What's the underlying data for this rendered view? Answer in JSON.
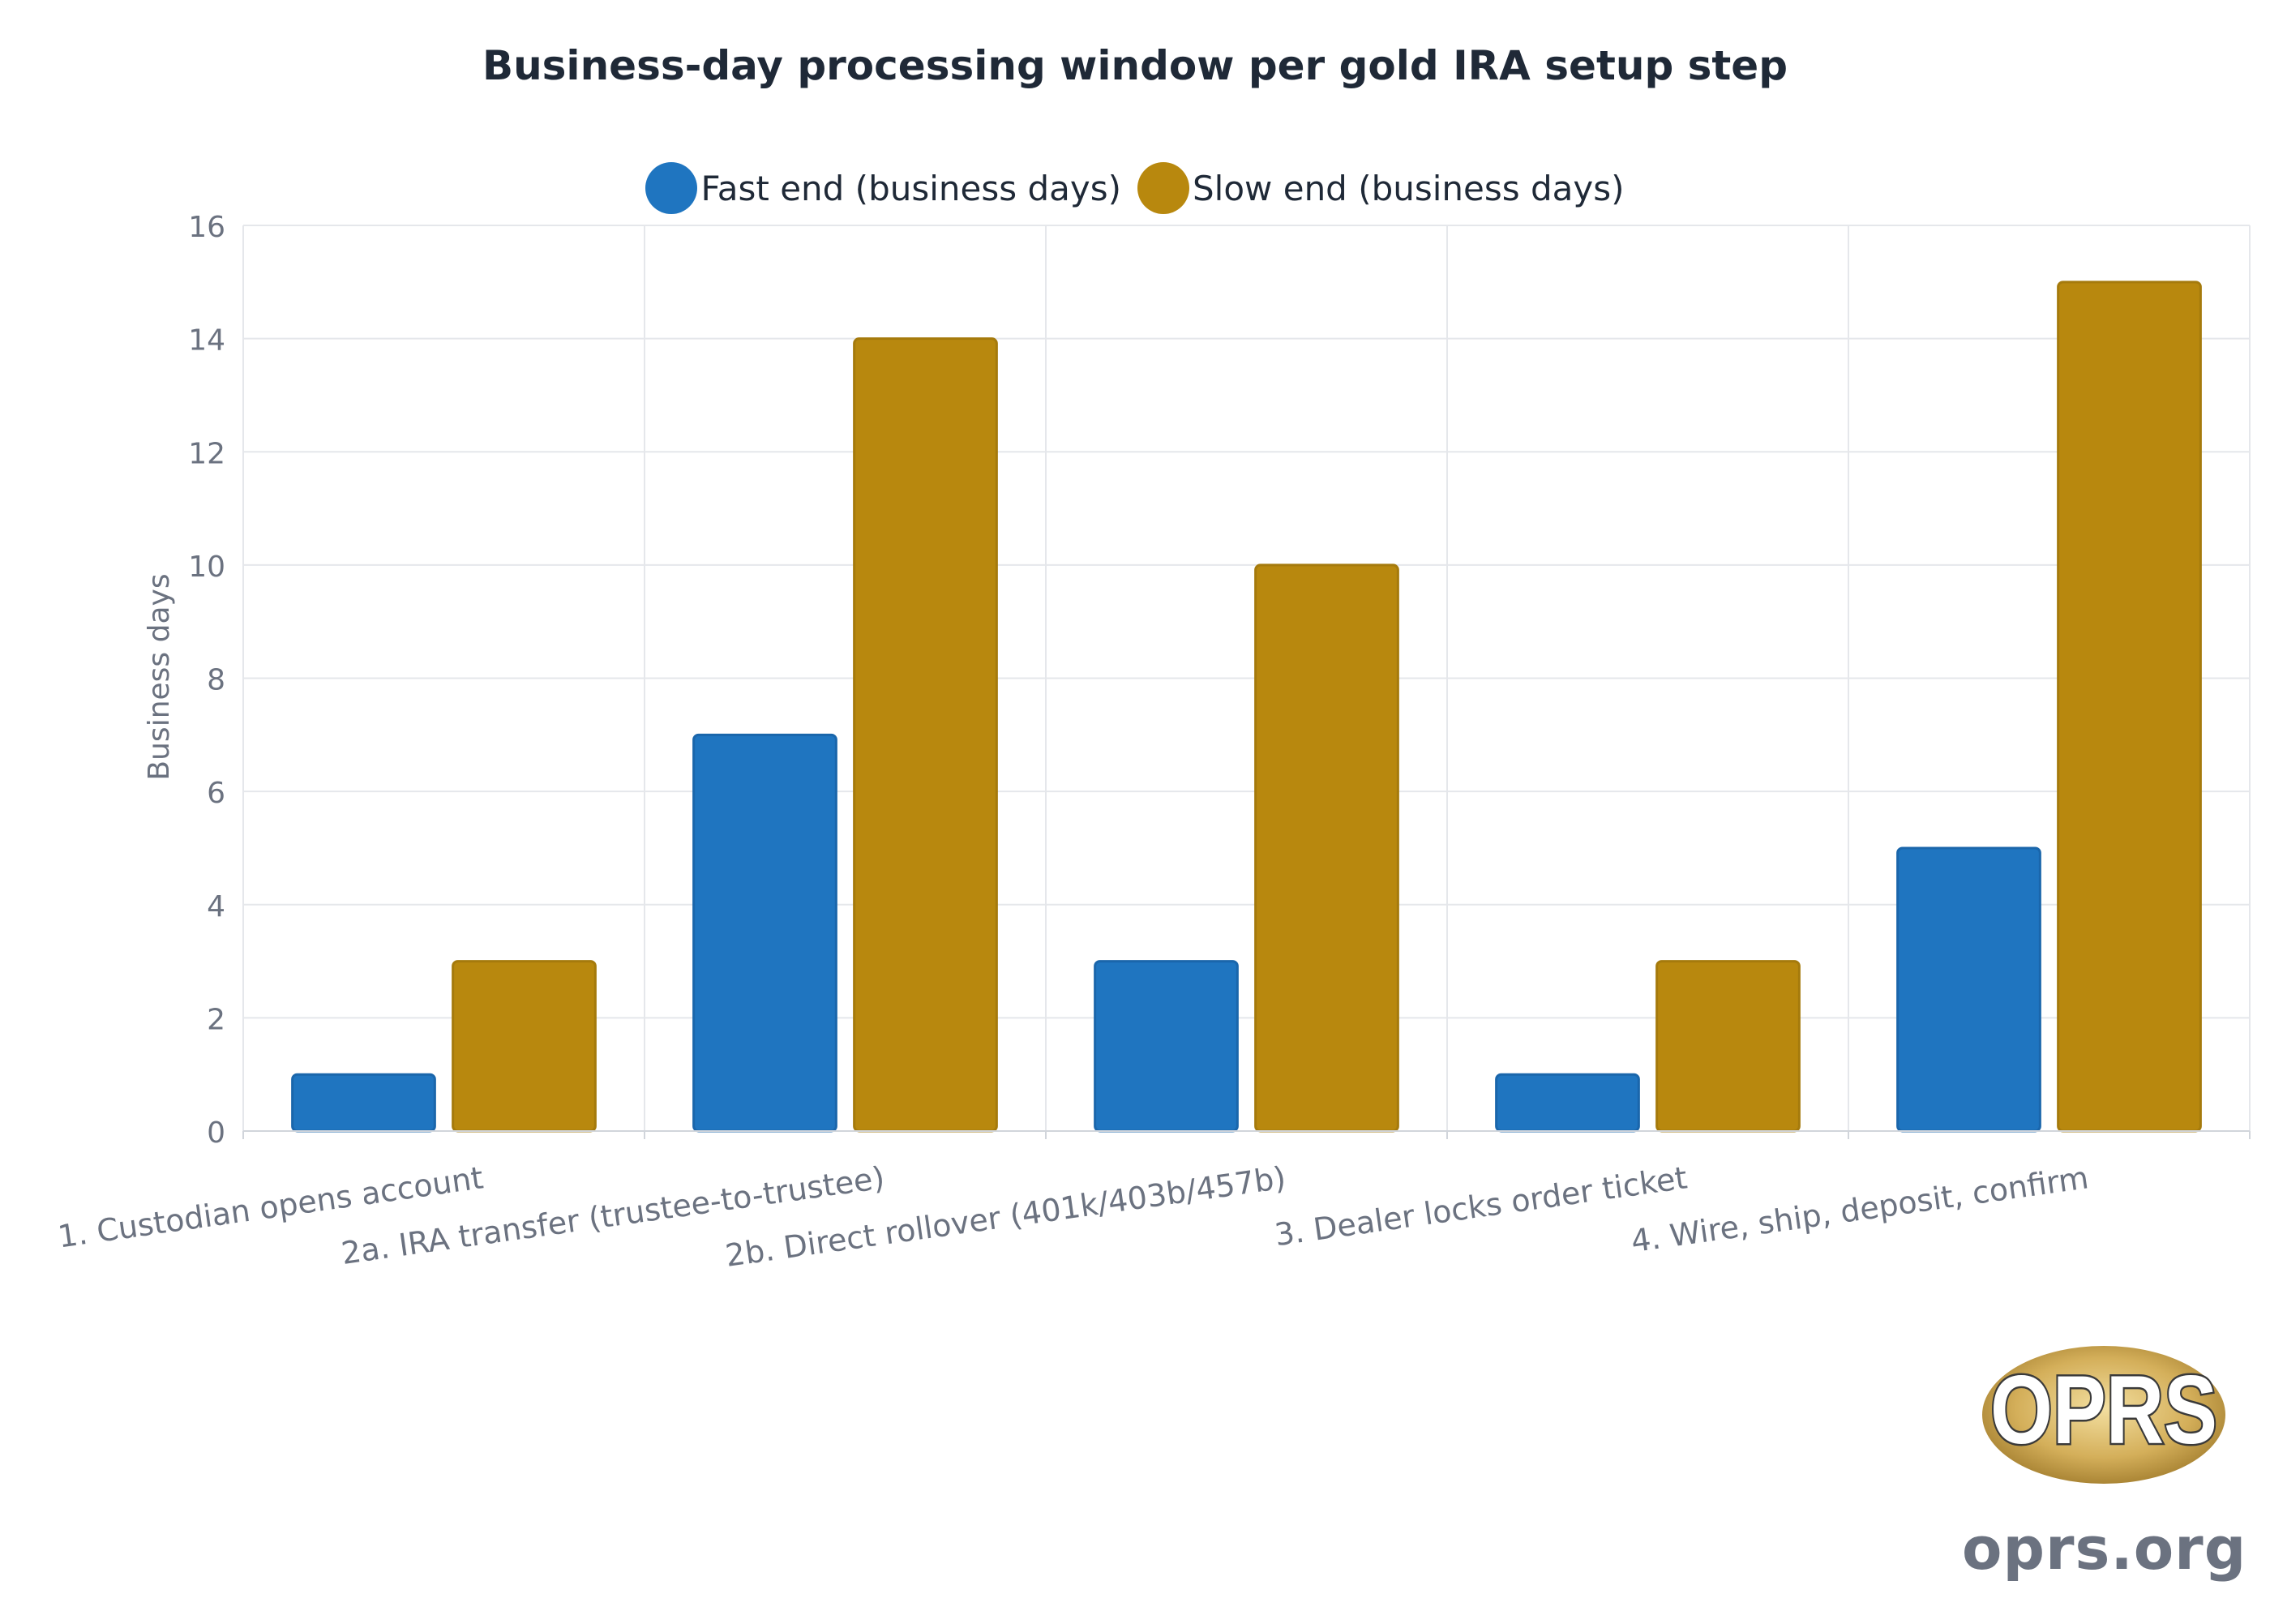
{
  "chart_data": {
    "type": "bar",
    "title": "Business-day processing window per gold IRA setup step",
    "ylabel": "Business days",
    "xlabel": "",
    "ylim": [
      0,
      16
    ],
    "yticks": [
      0,
      2,
      4,
      6,
      8,
      10,
      12,
      14,
      16
    ],
    "grid": true,
    "legend_position": "top-center",
    "categories": [
      "1. Custodian opens account",
      "2a. IRA transfer (trustee-to-trustee)",
      "2b. Direct rollover (401k/403b/457b)",
      "3. Dealer locks order ticket",
      "4. Wire, ship, deposit, confirm"
    ],
    "series": [
      {
        "name": "Fast end (business days)",
        "color": "#1f75c0",
        "values": [
          1,
          7,
          3,
          1,
          5
        ]
      },
      {
        "name": "Slow end (business days)",
        "color": "#b8880e",
        "values": [
          3,
          14,
          10,
          3,
          15
        ]
      }
    ]
  },
  "branding": {
    "logo_text": "OPRS",
    "site": "oprs.org"
  }
}
